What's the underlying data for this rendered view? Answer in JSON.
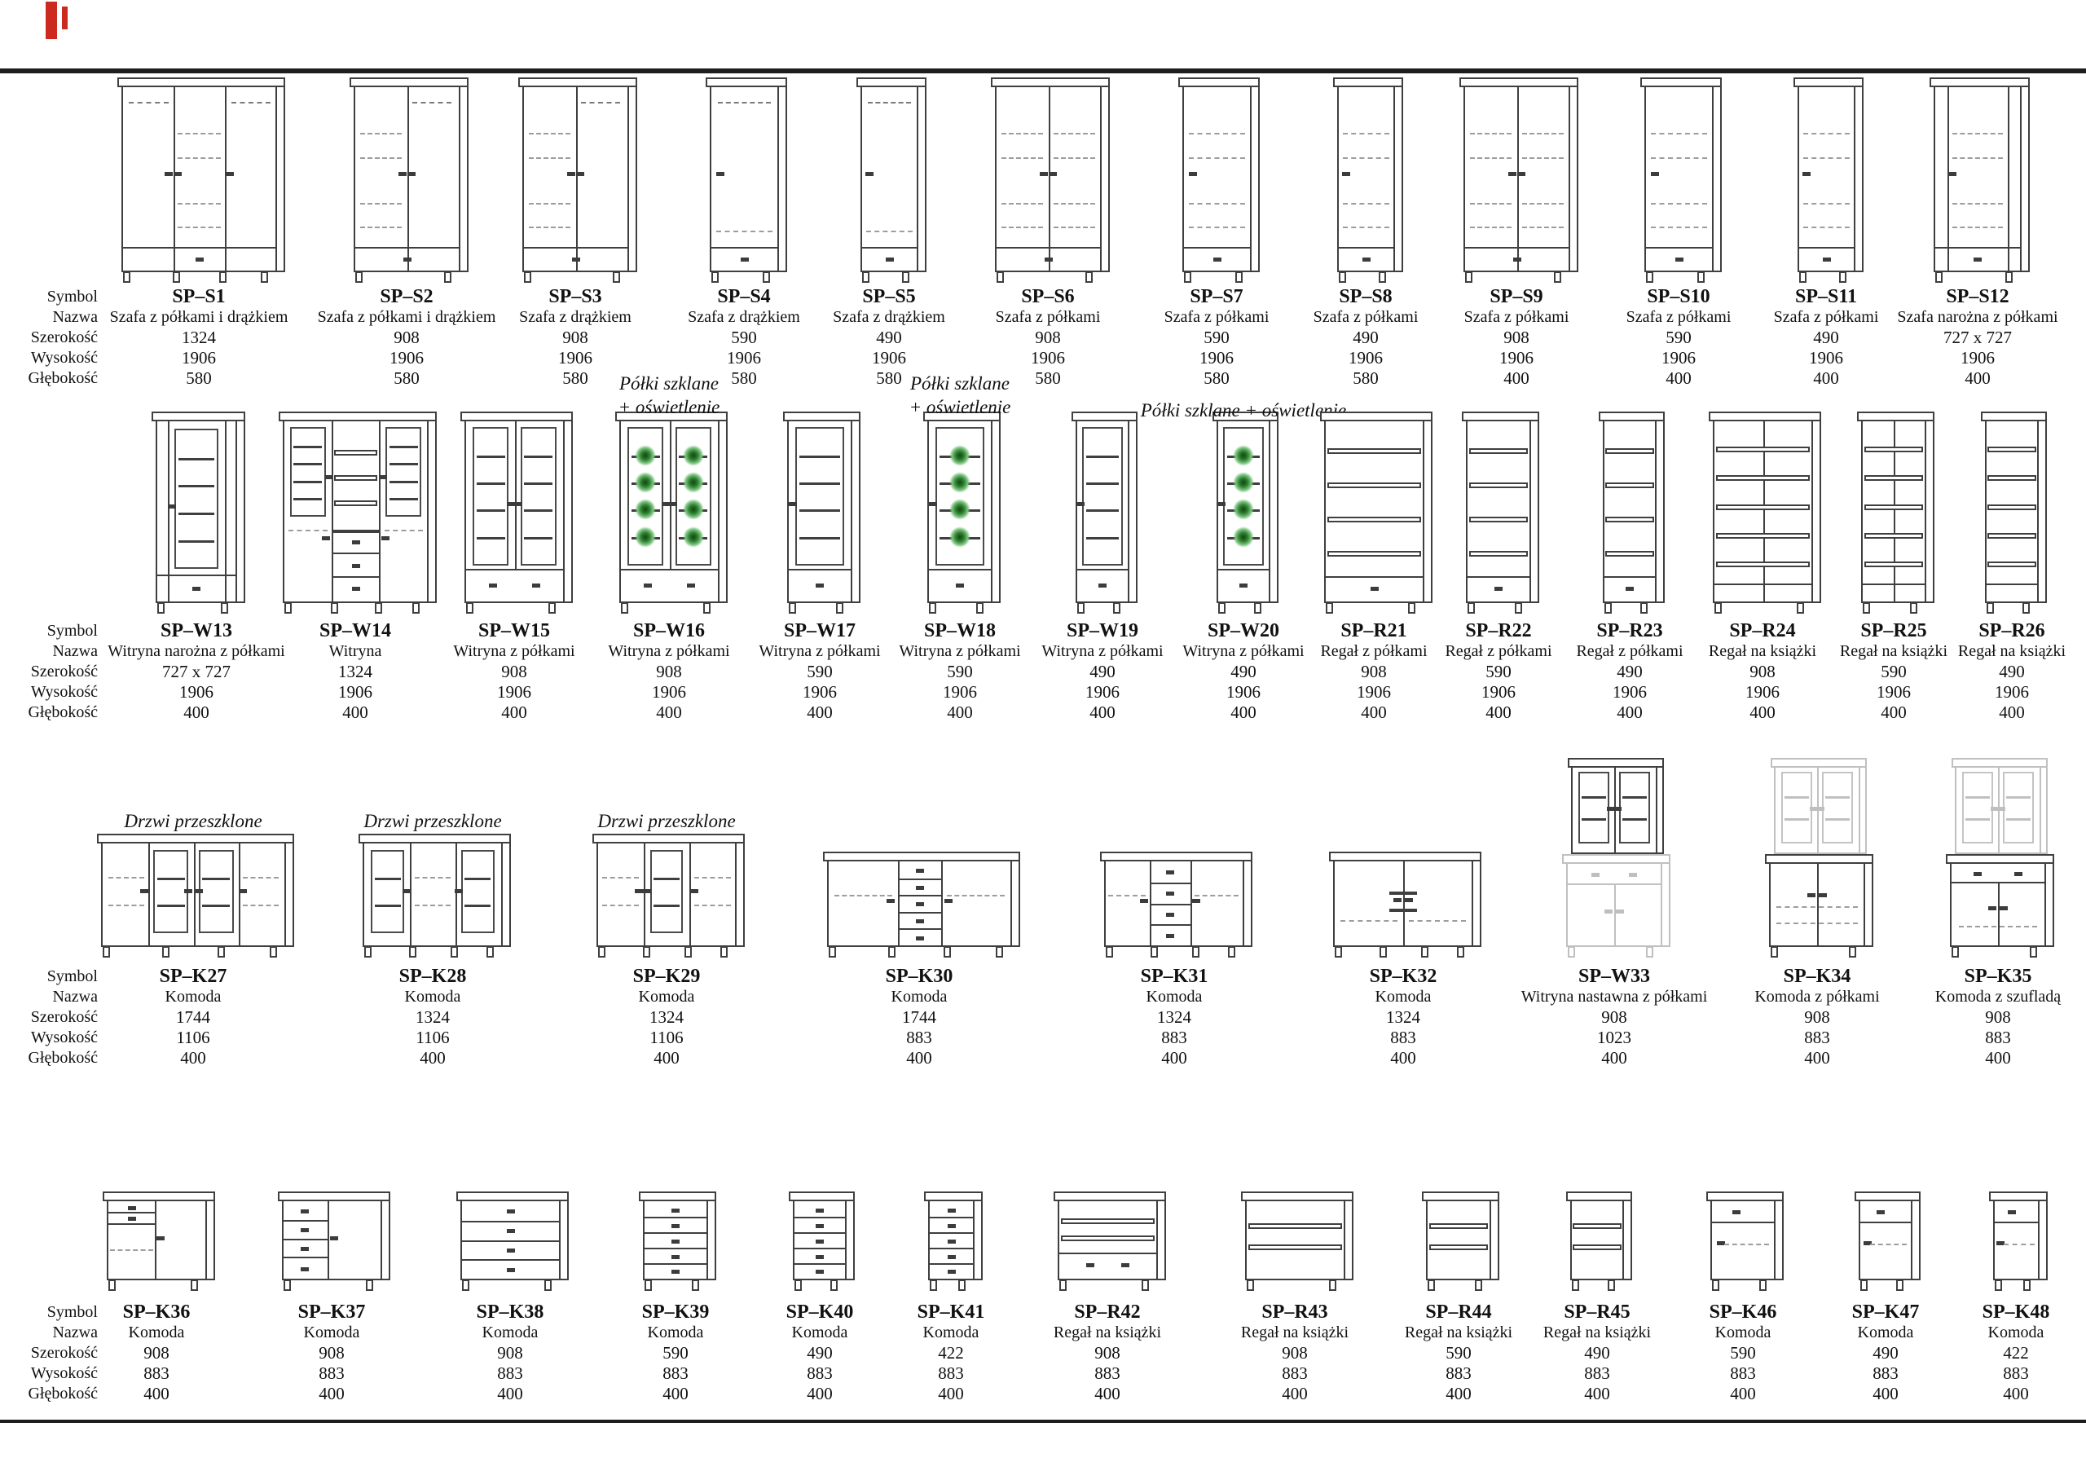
{
  "page": {
    "row_labels": [
      "Symbol",
      "Nazwa",
      "Szerokość",
      "Wysokość",
      "Głębokość"
    ],
    "line_color": "#3f3f3f",
    "led_color": "#2f7d32"
  },
  "rows": [
    {
      "items": [
        {
          "symbol": "SP–S1",
          "name": "Szafa z półkami i drążkiem",
          "width": "1324",
          "height": "1906",
          "depth": "580",
          "kind": "w3sr"
        },
        {
          "symbol": "SP–S2",
          "name": "Szafa z półkami i drążkiem",
          "width": "908",
          "height": "1906",
          "depth": "580",
          "kind": "w2sr"
        },
        {
          "symbol": "SP–S3",
          "name": "Szafa z drążkiem",
          "width": "908",
          "height": "1906",
          "depth": "580",
          "kind": "w2sr"
        },
        {
          "symbol": "SP–S4",
          "name": "Szafa z drążkiem",
          "width": "590",
          "height": "1906",
          "depth": "580",
          "kind": "w1r"
        },
        {
          "symbol": "SP–S5",
          "name": "Szafa z drążkiem",
          "width": "490",
          "height": "1906",
          "depth": "580",
          "kind": "w1r"
        },
        {
          "symbol": "SP–S6",
          "name": "Szafa z półkami",
          "width": "908",
          "height": "1906",
          "depth": "580",
          "kind": "w2s"
        },
        {
          "symbol": "SP–S7",
          "name": "Szafa z półkami",
          "width": "590",
          "height": "1906",
          "depth": "580",
          "kind": "w1s"
        },
        {
          "symbol": "SP–S8",
          "name": "Szafa z półkami",
          "width": "490",
          "height": "1906",
          "depth": "580",
          "kind": "w1s"
        },
        {
          "symbol": "SP–S9",
          "name": "Szafa z półkami",
          "width": "908",
          "height": "1906",
          "depth": "400",
          "kind": "w2s"
        },
        {
          "symbol": "SP–S10",
          "name": "Szafa z półkami",
          "width": "590",
          "height": "1906",
          "depth": "400",
          "kind": "w1s"
        },
        {
          "symbol": "SP–S11",
          "name": "Szafa z półkami",
          "width": "490",
          "height": "1906",
          "depth": "400",
          "kind": "w1s"
        },
        {
          "symbol": "SP–S12",
          "name": "Szafa narożna z półkami",
          "width": "727 x 727",
          "height": "1906",
          "depth": "400",
          "kind": "cornerW"
        }
      ]
    },
    {
      "items": [
        {
          "symbol": "SP–W13",
          "name": "Witryna narożna z półkami",
          "width": "727 x 727",
          "height": "1906",
          "depth": "400",
          "kind": "cornerV"
        },
        {
          "symbol": "SP–W14",
          "name": "Witryna",
          "width": "1324",
          "height": "1906",
          "depth": "400",
          "kind": "vitWide"
        },
        {
          "symbol": "SP–W15",
          "name": "Witryna z półkami",
          "width": "908",
          "height": "1906",
          "depth": "400",
          "kind": "vit2"
        },
        {
          "symbol": "SP–W16",
          "name": "Witryna z półkami",
          "width": "908",
          "height": "1906",
          "depth": "400",
          "kind": "vit2L",
          "note": [
            "Półki szklane",
            "+ oświetlenie"
          ]
        },
        {
          "symbol": "SP–W17",
          "name": "Witryna z półkami",
          "width": "590",
          "height": "1906",
          "depth": "400",
          "kind": "vit1"
        },
        {
          "symbol": "SP–W18",
          "name": "Witryna z półkami",
          "width": "590",
          "height": "1906",
          "depth": "400",
          "kind": "vit1L",
          "note": [
            "Półki szklane",
            "+ oświetlenie"
          ]
        },
        {
          "symbol": "SP–W19",
          "name": "Witryna z półkami",
          "width": "490",
          "height": "1906",
          "depth": "400",
          "kind": "vit1"
        },
        {
          "symbol": "SP–W20",
          "name": "Witryna z półkami",
          "width": "490",
          "height": "1906",
          "depth": "400",
          "kind": "vit1L",
          "note": [
            "Półki szklane + oświetlenie"
          ]
        },
        {
          "symbol": "SP–R21",
          "name": "Regał z półkami",
          "width": "908",
          "height": "1906",
          "depth": "400",
          "kind": "reg"
        },
        {
          "symbol": "SP–R22",
          "name": "Regał z półkami",
          "width": "590",
          "height": "1906",
          "depth": "400",
          "kind": "reg"
        },
        {
          "symbol": "SP–R23",
          "name": "Regał z półkami",
          "width": "490",
          "height": "1906",
          "depth": "400",
          "kind": "reg"
        },
        {
          "symbol": "SP–R24",
          "name": "Regał na książki",
          "width": "908",
          "height": "1906",
          "depth": "400",
          "kind": "book2"
        },
        {
          "symbol": "SP–R25",
          "name": "Regał na książki",
          "width": "590",
          "height": "1906",
          "depth": "400",
          "kind": "book2"
        },
        {
          "symbol": "SP–R26",
          "name": "Regał na książki",
          "width": "490",
          "height": "1906",
          "depth": "400",
          "kind": "book1"
        }
      ]
    },
    {
      "items": [
        {
          "symbol": "SP–K27",
          "name": "Komoda",
          "width": "1744",
          "height": "1106",
          "depth": "400",
          "kind": "side4",
          "note": [
            "Drzwi przeszklone"
          ]
        },
        {
          "symbol": "SP–K28",
          "name": "Komoda",
          "width": "1324",
          "height": "1106",
          "depth": "400",
          "kind": "side3a",
          "note": [
            "Drzwi przeszklone"
          ]
        },
        {
          "symbol": "SP–K29",
          "name": "Komoda",
          "width": "1324",
          "height": "1106",
          "depth": "400",
          "kind": "side3b",
          "note": [
            "Drzwi przeszklone"
          ]
        },
        {
          "symbol": "SP–K30",
          "name": "Komoda",
          "width": "1744",
          "height": "883",
          "depth": "400",
          "kind": "sideDr"
        },
        {
          "symbol": "SP–K31",
          "name": "Komoda",
          "width": "1324",
          "height": "883",
          "depth": "400",
          "kind": "sideDr2"
        },
        {
          "symbol": "SP–K32",
          "name": "Komoda",
          "width": "1324",
          "height": "883",
          "depth": "400",
          "kind": "side2"
        },
        {
          "symbol": "SP–W33",
          "name": "Witryna nastawna z półkami",
          "width": "908",
          "height": "1023",
          "depth": "400",
          "kind": "hutchT"
        },
        {
          "symbol": "SP–K34",
          "name": "Komoda z półkami",
          "width": "908",
          "height": "883",
          "depth": "400",
          "kind": "hutchB"
        },
        {
          "symbol": "SP–K35",
          "name": "Komoda z szufladą",
          "width": "908",
          "height": "883",
          "depth": "400",
          "kind": "hutchBD"
        }
      ]
    },
    {
      "items": [
        {
          "symbol": "SP–K36",
          "name": "Komoda",
          "width": "908",
          "height": "883",
          "depth": "400",
          "kind": "komMix"
        },
        {
          "symbol": "SP–K37",
          "name": "Komoda",
          "width": "908",
          "height": "883",
          "depth": "400",
          "kind": "komCol"
        },
        {
          "symbol": "SP–K38",
          "name": "Komoda",
          "width": "908",
          "height": "883",
          "depth": "400",
          "kind": "dr4"
        },
        {
          "symbol": "SP–K39",
          "name": "Komoda",
          "width": "590",
          "height": "883",
          "depth": "400",
          "kind": "dr5"
        },
        {
          "symbol": "SP–K40",
          "name": "Komoda",
          "width": "490",
          "height": "883",
          "depth": "400",
          "kind": "dr5"
        },
        {
          "symbol": "SP–K41",
          "name": "Komoda",
          "width": "422",
          "height": "883",
          "depth": "400",
          "kind": "dr5"
        },
        {
          "symbol": "SP–R42",
          "name": "Regał na książki",
          "width": "908",
          "height": "883",
          "depth": "400",
          "kind": "regSD"
        },
        {
          "symbol": "SP–R43",
          "name": "Regał na książki",
          "width": "908",
          "height": "883",
          "depth": "400",
          "kind": "regS"
        },
        {
          "symbol": "SP–R44",
          "name": "Regał na książki",
          "width": "590",
          "height": "883",
          "depth": "400",
          "kind": "regS"
        },
        {
          "symbol": "SP–R45",
          "name": "Regał na książki",
          "width": "490",
          "height": "883",
          "depth": "400",
          "kind": "regS"
        },
        {
          "symbol": "SP–K46",
          "name": "Komoda",
          "width": "590",
          "height": "883",
          "depth": "400",
          "kind": "komDoor"
        },
        {
          "symbol": "SP–K47",
          "name": "Komoda",
          "width": "490",
          "height": "883",
          "depth": "400",
          "kind": "komDoor"
        },
        {
          "symbol": "SP–K48",
          "name": "Komoda",
          "width": "422",
          "height": "883",
          "depth": "400",
          "kind": "komDoor"
        }
      ]
    }
  ]
}
